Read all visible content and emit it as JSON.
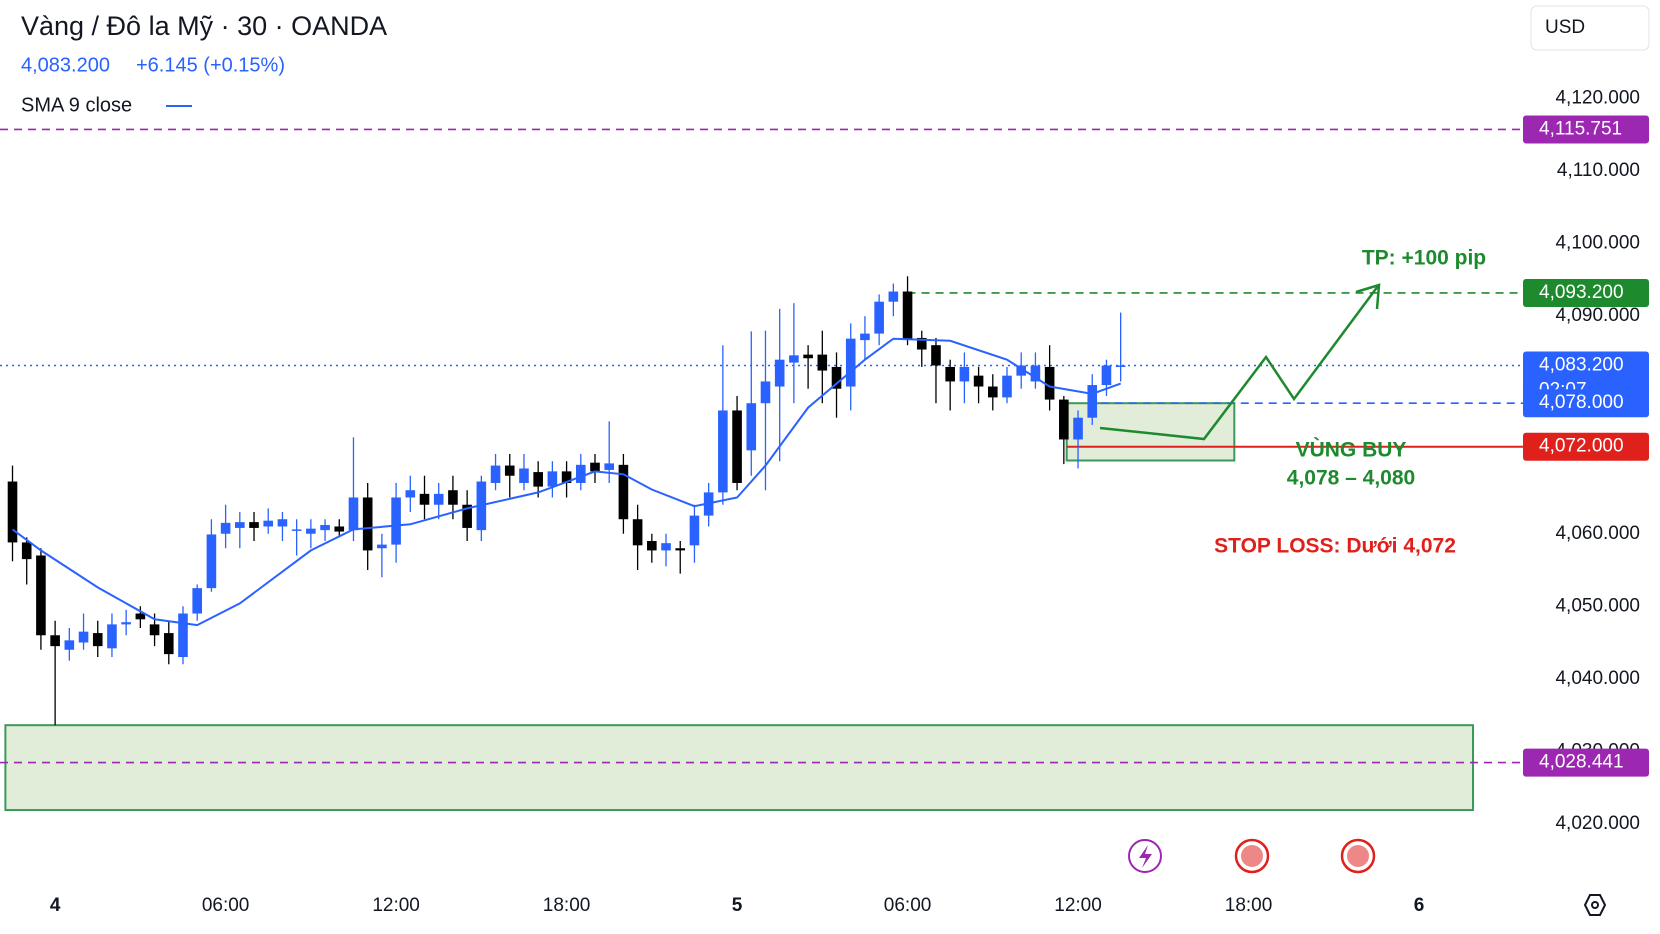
{
  "chart_data": {
    "type": "candlestick",
    "title": "Vàng / Đô la Mỹ · 30 · OANDA",
    "price": "4,083.200",
    "change": "+6.145 (+0.15%)",
    "indicator": "SMA 9 close",
    "currency": "USD",
    "up_color": "#2962ff",
    "down_color": "#000000",
    "x": [
      -1.5,
      -1,
      -0.5,
      0,
      0.5,
      1,
      1.5,
      2,
      2.5,
      3,
      3.5,
      4,
      4.5,
      5,
      5.5,
      6,
      6.5,
      7,
      7.5,
      8,
      8.5,
      9,
      9.5,
      10,
      10.5,
      11,
      11.5,
      12,
      12.5,
      13,
      13.5,
      14,
      14.5,
      15,
      15.5,
      16,
      16.5,
      17,
      17.5,
      18,
      18.5,
      19,
      19.5,
      20,
      20.5,
      21,
      21.5,
      22,
      22.5,
      23,
      23.5,
      24,
      24.5,
      25,
      25.5,
      26,
      26.5,
      27,
      27.5,
      28,
      28.5,
      29,
      29.5,
      30,
      30.5,
      31,
      31.5,
      32,
      32.5,
      33,
      33.5,
      34,
      34.5,
      35,
      35.5,
      36,
      36.5,
      37,
      37.5
    ],
    "open": [
      4067.2,
      4058.8,
      4057,
      4046,
      4044,
      4045,
      4046.3,
      4044.2,
      4047.5,
      4049,
      4047.5,
      4046.3,
      4043,
      4049,
      4052.5,
      4060,
      4060.8,
      4061.6,
      4061,
      4061,
      4060.4,
      4060,
      4060.5,
      4061,
      4060.5,
      4065,
      4058,
      4058.5,
      4065,
      4065.5,
      4064,
      4066,
      4064,
      4060.5,
      4067,
      4069.4,
      4067,
      4068.5,
      4066.5,
      4068.6,
      4067,
      4069.8,
      4068.8,
      4069.5,
      4062,
      4059,
      4057.7,
      4058,
      4058.4,
      4062.5,
      4065.7,
      4077,
      4071.5,
      4078,
      4080.3,
      4083.6,
      4084.7,
      4084.7,
      4083,
      4080.3,
      4086.7,
      4087.6,
      4092,
      4093.4,
      4087,
      4086,
      4083,
      4081,
      4081.8,
      4080.3,
      4078.8,
      4081.8,
      4081,
      4083,
      4078.5,
      4073,
      4076,
      4080.5,
      4083.2
    ],
    "high": [
      4069.4,
      4059.5,
      4058,
      4048,
      4047,
      4049,
      4048,
      4049,
      4049.5,
      4050,
      4049,
      4048,
      4050,
      4053,
      4062,
      4064,
      4063,
      4063,
      4063.5,
      4063,
      4062,
      4062,
      4062,
      4062,
      4073.3,
      4067,
      4060,
      4067,
      4068,
      4068,
      4067,
      4068,
      4066,
      4068,
      4071,
      4071,
      4071,
      4070,
      4070,
      4070,
      4071,
      4071,
      4075.5,
      4071,
      4064,
      4060,
      4060,
      4059,
      4064,
      4067,
      4086,
      4079,
      4087.9,
      4088,
      4091,
      4091.8,
      4086,
      4088,
      4085,
      4089,
      4090,
      4093,
      4094.5,
      4095.5,
      4088,
      4087,
      4084,
      4085,
      4083,
      4082,
      4083,
      4085,
      4085,
      4086,
      4079,
      4077,
      4082,
      4084,
      4090.5
    ],
    "low": [
      4056.2,
      4053,
      4044,
      4033.6,
      4042.5,
      4044,
      4043,
      4043,
      4046,
      4047,
      4044.5,
      4042,
      4042,
      4048,
      4052,
      4058,
      4058,
      4059,
      4060,
      4059,
      4057,
      4058,
      4059,
      4059.5,
      4059,
      4055,
      4054,
      4056,
      4063,
      4062,
      4062,
      4062,
      4059,
      4059,
      4066,
      4065,
      4066,
      4065,
      4065,
      4065,
      4066,
      4067,
      4067,
      4060,
      4055,
      4056,
      4055.5,
      4054.5,
      4056,
      4061,
      4064,
      4066,
      4068,
      4066,
      4070,
      4078,
      4080,
      4078,
      4076,
      4077,
      4084,
      4086,
      4090,
      4086,
      4083,
      4078,
      4077,
      4078,
      4078,
      4077,
      4078,
      4080,
      4080,
      4077,
      4069.6,
      4069,
      4075,
      4079,
      4081
    ],
    "close": [
      4058.8,
      4056.5,
      4046,
      4044.5,
      4045.3,
      4046.5,
      4044.5,
      4047.5,
      4047.8,
      4048.2,
      4046,
      4043.4,
      4049,
      4052.5,
      4059.9,
      4061.5,
      4061.6,
      4060.8,
      4061.8,
      4062,
      4060.6,
      4060.7,
      4061.2,
      4060.3,
      4065,
      4057.7,
      4058.5,
      4065,
      4066,
      4064,
      4065.5,
      4064,
      4060.8,
      4067.2,
      4069.4,
      4068,
      4069,
      4066.5,
      4068.6,
      4067,
      4069.5,
      4068.6,
      4069.7,
      4062,
      4058.4,
      4057.7,
      4058.7,
      4057.7,
      4062.5,
      4065.7,
      4077,
      4067,
      4078,
      4081,
      4084,
      4084.6,
      4084.2,
      4082.5,
      4080,
      4086.9,
      4087.6,
      4092,
      4093.4,
      4086.9,
      4085.4,
      4083.2,
      4081,
      4083,
      4080.3,
      4078.8,
      4081.8,
      4083.2,
      4083.2,
      4078.5,
      4073,
      4076,
      4080.5,
      4083.2,
      4083.2
    ],
    "sma": {
      "color": "#2962ff",
      "x": [
        -1.5,
        -0.5,
        1.5,
        3.5,
        5,
        6.5,
        9,
        10.5,
        12.5,
        14.5,
        17,
        19,
        20,
        21,
        22.5,
        24,
        25,
        26.5,
        28.5,
        29.5,
        31.5,
        33.5,
        35,
        36.5,
        37.5
      ],
      "values": [
        4060.6,
        4057.7,
        4052.6,
        4048.2,
        4047.4,
        4050.4,
        4057.7,
        4060.6,
        4061.3,
        4063.5,
        4065.7,
        4068.6,
        4068.2,
        4066.1,
        4063.8,
        4065,
        4069.4,
        4077.4,
        4084,
        4086.9,
        4086.6,
        4084,
        4080.3,
        4079.3,
        4080.7
      ]
    },
    "xlim": [
      -1.94,
      51.73
    ],
    "ylim": [
      4011.7,
      4133.6
    ],
    "xticks": [
      {
        "value": 0,
        "label": "4"
      },
      {
        "value": 6,
        "label": "06:00"
      },
      {
        "value": 12,
        "label": "12:00"
      },
      {
        "value": 18,
        "label": "18:00"
      },
      {
        "value": 24,
        "label": "5"
      },
      {
        "value": 30,
        "label": "06:00"
      },
      {
        "value": 36,
        "label": "12:00"
      },
      {
        "value": 42,
        "label": "18:00"
      },
      {
        "value": 48,
        "label": "6"
      }
    ],
    "yticks": [
      {
        "value": 4120,
        "label": "4,120.000"
      },
      {
        "value": 4110,
        "label": "4,110.000"
      },
      {
        "value": 4100,
        "label": "4,100.000"
      },
      {
        "value": 4090,
        "label": "4,090.000"
      },
      {
        "value": 4060,
        "label": "4,060.000"
      },
      {
        "value": 4050,
        "label": "4,050.000"
      },
      {
        "value": 4040,
        "label": "4,040.000"
      },
      {
        "value": 4030,
        "label": "4,030.000"
      },
      {
        "value": 4020,
        "label": "4,020.000"
      }
    ],
    "levels": [
      {
        "value": 4115.751,
        "label": "4,115.751",
        "color": "#9c27b0",
        "style": "dash",
        "from": -1.94
      },
      {
        "value": 4093.2,
        "label": "4,093.200",
        "color": "#1e8a2e",
        "style": "dash",
        "from": 30
      },
      {
        "value": 4083.2,
        "label": "4,083.200",
        "countdown": "02:07",
        "color": "#2962ff",
        "style": "dot",
        "from": -1.94
      },
      {
        "value": 4078,
        "label": "4,078.000",
        "color": "#2962ff",
        "style": "dash",
        "from": 36.8
      },
      {
        "value": 4072,
        "label": "4,072.000",
        "color": "#e0201b",
        "style": "solid",
        "from": 35.6
      },
      {
        "value": 4028.441,
        "label": "4,028.441",
        "color": "#9c27b0",
        "style": "dash",
        "from": -1.94
      }
    ],
    "zones": [
      {
        "from": -1.75,
        "to": 49.9,
        "low": 4021.9,
        "high": 4033.6
      },
      {
        "from": 35.6,
        "to": 41.5,
        "low": 4070.1,
        "high": 4078
      }
    ],
    "annotations": {
      "tp": "TP: +100 pip",
      "buy": "VÙNG BUY",
      "buy_range": "4,078 – 4,080",
      "stop": "STOP LOSS: Dưới 4,072"
    }
  }
}
